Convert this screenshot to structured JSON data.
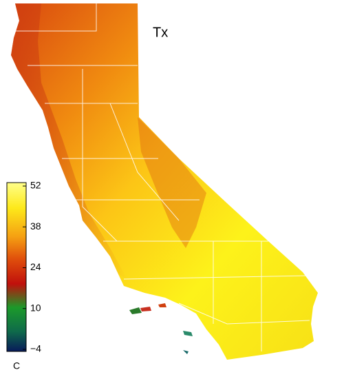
{
  "map": {
    "title": "Tx",
    "colorbar": {
      "lim": [
        -4,
        52
      ],
      "ticks": [
        {
          "value": -4,
          "label": "−4"
        },
        10,
        24,
        38,
        52
      ],
      "unit": "C"
    }
  }
}
